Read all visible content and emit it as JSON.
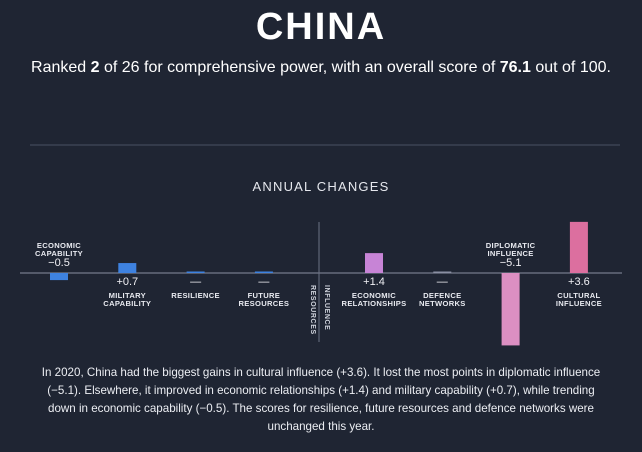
{
  "header": {
    "title": "CHINA",
    "subtitle": [
      "Ranked ",
      "2",
      " of 26 for comprehensive power, with an overall score of ",
      "76.1",
      " out of 100."
    ]
  },
  "chart_data": {
    "type": "bar",
    "title": "ANNUAL CHANGES",
    "categories": [
      "ECONOMIC CAPABILITY",
      "MILITARY CAPABILITY",
      "RESILIENCE",
      "FUTURE RESOURCES",
      "ECONOMIC RELATIONSHIPS",
      "DEFENCE NETWORKS",
      "DIPLOMATIC INFLUENCE",
      "CULTURAL INFLUENCE"
    ],
    "values": [
      -0.5,
      0.7,
      0,
      0,
      1.4,
      0,
      -5.1,
      3.6
    ],
    "value_labels": [
      "−0.5",
      "+0.7",
      "—",
      "—",
      "+1.4",
      "—",
      "−5.1",
      "+3.6"
    ],
    "colors": [
      "#3e82e0",
      "#3e82e0",
      "#3e82e0",
      "#3e82e0",
      "#c784d6",
      "#8a8fa3",
      "#dc8fc2",
      "#dc6f9f"
    ],
    "groups": [
      {
        "label": "RESOURCES",
        "size": 4
      },
      {
        "label": "INFLUENCE",
        "size": 4
      }
    ]
  },
  "note": "In 2020, China had the biggest gains in cultural influence (+3.6). It lost the most points in diplomatic influence (−5.1). Elsewhere, it improved in economic relationships (+1.4) and military capability (+0.7), while trending down in economic capability (−0.5). The scores for resilience, future resources and defence networks were unchanged this year."
}
